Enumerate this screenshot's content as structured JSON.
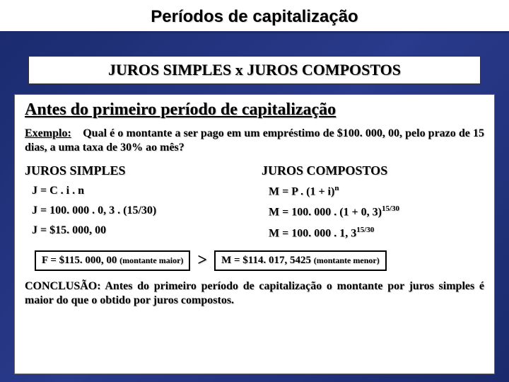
{
  "title": "Períodos de capitalização",
  "heading_box": "JUROS SIMPLES  x  JUROS COMPOSTOS",
  "subheading": "Antes do primeiro período de capitalização",
  "example_label": "Exemplo:",
  "example_text": "Qual é o montante a ser pago em um empréstimo de $100. 000, 00, pelo prazo de 15 dias, a uma taxa de 30% ao mês?",
  "col_left_heading": "JUROS SIMPLES",
  "col_left_line1": "J = C . i . n",
  "col_left_line2": "J = 100. 000 . 0, 3 . (15/30)",
  "col_left_line3": "J = $15. 000, 00",
  "col_left_boxed_main": "F = $115. 000, 00 ",
  "col_left_boxed_note": "(montante maior)",
  "col_right_heading": "JUROS COMPOSTOS",
  "col_right_line1_pre": "M = P . (1 + i)",
  "col_right_line1_sup": "n",
  "col_right_line2_pre": "M = 100. 000 . (1 + 0, 3)",
  "col_right_line2_sup": "15/30",
  "col_right_line3_pre": "M = 100. 000 . 1, 3",
  "col_right_line3_sup": "15/30",
  "gt_symbol": ">",
  "col_right_boxed_main": "M = $114. 017, 5425 ",
  "col_right_boxed_note": "(montante menor)",
  "conclusion": "CONCLUSÃO:  Antes do primeiro período de capitalização o montante por juros simples é maior do que o obtido por juros compostos.",
  "colors": {
    "background_gradient_start": "#1a2a6c",
    "background_gradient_end": "#2a3a8c",
    "box_bg": "#ffffff",
    "text": "#000000"
  }
}
